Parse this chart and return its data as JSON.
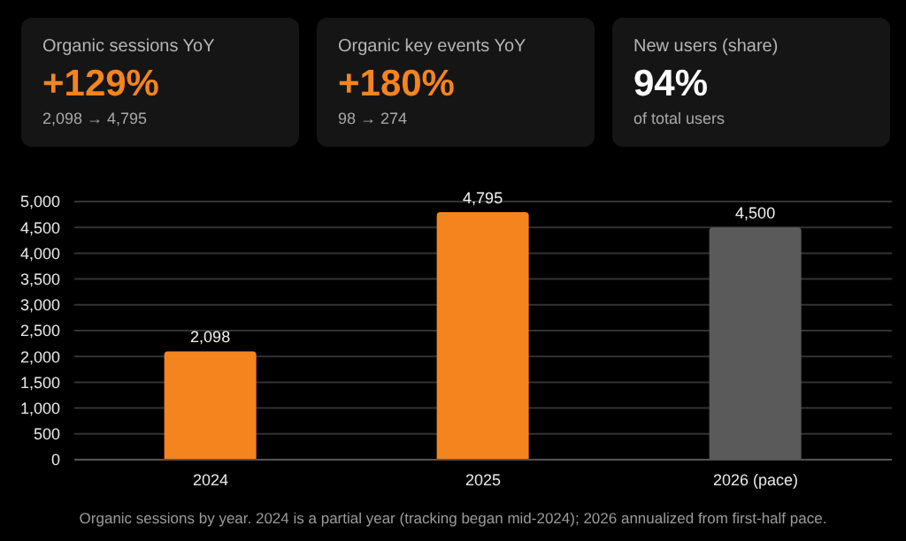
{
  "chart_data": [
    {
      "type": "other",
      "title": "Organic sessions YoY",
      "color": "#f5841f",
      "annotations": [
        "+129%",
        "2,098 → 4,795"
      ]
    },
    {
      "type": "other",
      "title": "Organic key events YoY",
      "color": "#f5841f",
      "annotations": [
        "+180%",
        "98 → 274"
      ]
    },
    {
      "type": "other",
      "title": "New users (share)",
      "color": "#ffffff",
      "annotations": [
        "94%",
        "of total users"
      ]
    },
    {
      "type": "bar",
      "categories": [
        "2024",
        "2025",
        "2026 (pace)"
      ],
      "values": [
        2098,
        4795,
        4500
      ],
      "colors": [
        "#f5841f",
        "#f5841f",
        "#5a5a5a"
      ],
      "value_labels": [
        "2,098",
        "4,795",
        "4,500"
      ],
      "ylim": [
        0,
        5000
      ],
      "yticks": [
        0,
        500,
        {
          "value": 1000,
          "label": "1,000"
        },
        {
          "value": 1500,
          "label": "1,500"
        },
        {
          "value": 2000,
          "label": "2,000"
        },
        {
          "value": 2500,
          "label": "2,500"
        },
        {
          "value": 3000,
          "label": "3,000"
        },
        {
          "value": 3500,
          "label": "3,500"
        },
        {
          "value": 4000,
          "label": "4,000"
        },
        {
          "value": 4500,
          "label": "4,500"
        },
        {
          "value": 5000,
          "label": "5,000"
        }
      ],
      "grid": "y",
      "legend": false,
      "annotations": [
        "Organic sessions by year. 2024 is a partial year (tracking began mid-2024); 2026 annualized from first-half pace."
      ]
    }
  ]
}
